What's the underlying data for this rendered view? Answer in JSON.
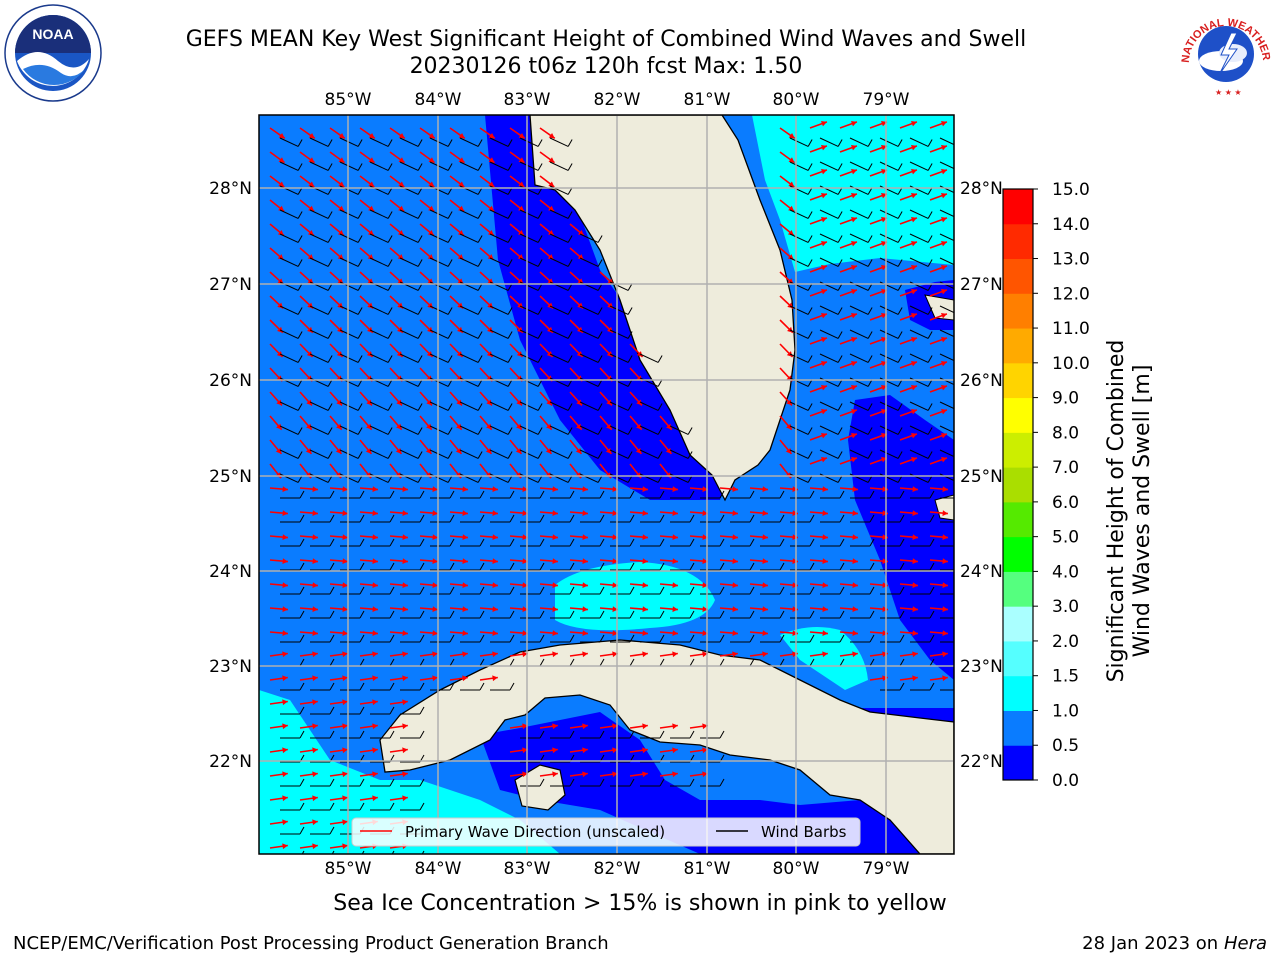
{
  "title": {
    "line1": "GEFS MEAN Key West Significant Height of Combined Wind Waves and Swell",
    "line2": "20230126 t06z 120h fcst   Max: 1.50"
  },
  "map": {
    "lon_labels": [
      "85°W",
      "84°W",
      "83°W",
      "82°W",
      "81°W",
      "80°W",
      "79°W"
    ],
    "lat_labels": [
      "28°N",
      "27°N",
      "26°N",
      "25°N",
      "24°N",
      "23°N",
      "22°N"
    ],
    "land_color": "#eeecdc",
    "gridline_color": "#b0b0b0",
    "wave_arrow_color": "#ff0000",
    "wind_barb_color": "#000000"
  },
  "legend": {
    "wave_label": "Primary Wave Direction (unscaled)",
    "wind_label": "Wind Barbs"
  },
  "colorbar": {
    "title_line1": "Significant Height of Combined",
    "title_line2": "Wind Waves and Swell [m]",
    "ticks": [
      "15.0",
      "14.0",
      "13.0",
      "12.0",
      "11.0",
      "10.0",
      "9.0",
      "8.0",
      "7.0",
      "6.0",
      "5.0",
      "4.0",
      "3.0",
      "2.0",
      "1.5",
      "1.0",
      "0.5",
      "0.0"
    ],
    "colors": [
      "#0000ff",
      "#0a7cff",
      "#00ffff",
      "#55ffff",
      "#aaffff",
      "#55ff7f",
      "#00ff00",
      "#55ea00",
      "#aade00",
      "#ccee00",
      "#ffff00",
      "#ffd400",
      "#ffaa00",
      "#ff7f00",
      "#ff5500",
      "#ff2a00",
      "#ff0000"
    ]
  },
  "footer": {
    "note": "Sea Ice Concentration > 15% is shown in pink to yellow",
    "credit": "NCEP/EMC/Verification Post Processing Product Generation Branch",
    "date": "28 Jan 2023 on ",
    "machine": "Hera"
  },
  "logos": {
    "left": "NOAA",
    "right_arc": "NATIONAL WEATHER SERVICE"
  }
}
